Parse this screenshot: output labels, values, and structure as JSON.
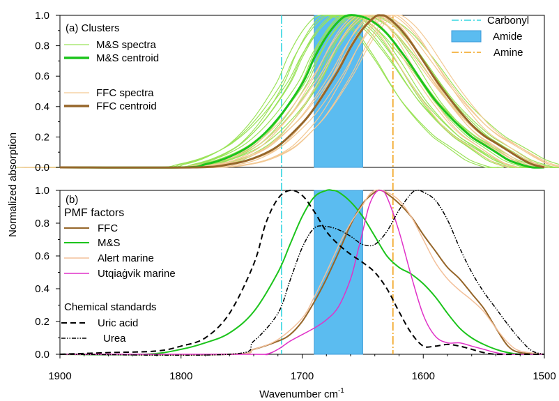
{
  "chart_data": {
    "type": "line",
    "xlabel": "Wavenumber cm",
    "xlabel_superscript": "-1",
    "ylabel": "Normalized absorption",
    "x_axis": {
      "range": [
        1900,
        1500
      ],
      "reversed": true,
      "ticks": [
        "1900",
        "1800",
        "1700",
        "1600",
        "1500"
      ]
    },
    "reference_markers": {
      "carbonyl": {
        "label": "Carbonyl",
        "x": 1717,
        "color": "#33d6e0"
      },
      "amide": {
        "label": "Amide",
        "x_range": [
          1690,
          1650
        ],
        "color": "#5bbcf0"
      },
      "amine": {
        "label": "Amine",
        "x": 1625,
        "color": "#f2a31b"
      }
    },
    "panels": [
      {
        "label": "(a) Clusters",
        "y_ticks": [
          "0.0",
          "0.2",
          "0.4",
          "0.6",
          "0.8",
          "1.0"
        ],
        "ylim": [
          0,
          1
        ],
        "legend": [
          {
            "label": "M&S spectra",
            "color": "#9be35a",
            "style": "thin"
          },
          {
            "label": "M&S centroid",
            "color": "#1cc41c",
            "style": "thick"
          },
          {
            "label": "FFC spectra",
            "color": "#f3c995",
            "style": "thin"
          },
          {
            "label": "FFC centroid",
            "color": "#96662a",
            "style": "thick"
          }
        ],
        "series": [
          {
            "name": "M&S centroid",
            "color": "#1cc41c",
            "width": 3,
            "x": [
              1900,
              1800,
              1780,
              1760,
              1740,
              1720,
              1700,
              1690,
              1680,
              1670,
              1662,
              1650,
              1640,
              1630,
              1620,
              1610,
              1600,
              1590,
              1580,
              1570,
              1560,
              1550,
              1540,
              1530,
              1520,
              1510,
              1500
            ],
            "y": [
              0.0,
              0.0,
              0.02,
              0.07,
              0.16,
              0.32,
              0.55,
              0.72,
              0.86,
              0.96,
              1.0,
              0.99,
              0.95,
              0.88,
              0.78,
              0.67,
              0.55,
              0.44,
              0.35,
              0.27,
              0.2,
              0.15,
              0.1,
              0.05,
              0.02,
              0.0,
              0.0
            ]
          },
          {
            "name": "FFC centroid",
            "color": "#96662a",
            "width": 3,
            "x": [
              1900,
              1790,
              1760,
              1740,
              1720,
              1700,
              1690,
              1680,
              1670,
              1660,
              1650,
              1640,
              1635,
              1630,
              1620,
              1610,
              1600,
              1590,
              1580,
              1570,
              1560,
              1550,
              1540,
              1530,
              1520,
              1510,
              1500
            ],
            "y": [
              0.0,
              0.0,
              0.02,
              0.06,
              0.14,
              0.29,
              0.39,
              0.51,
              0.64,
              0.79,
              0.91,
              0.99,
              1.0,
              0.99,
              0.92,
              0.82,
              0.7,
              0.58,
              0.47,
              0.37,
              0.28,
              0.21,
              0.16,
              0.11,
              0.06,
              0.02,
              0.0
            ]
          }
        ]
      },
      {
        "label": "(b)",
        "y_ticks": [
          "0.0",
          "0.2",
          "0.4",
          "0.6",
          "0.8",
          "1.0"
        ],
        "ylim": [
          0,
          1
        ],
        "legend_title": "PMF factors",
        "legend": [
          {
            "label": "FFC",
            "color": "#96662a",
            "style": "solid"
          },
          {
            "label": "M&S",
            "color": "#1cc41c",
            "style": "solid"
          },
          {
            "label": "Alert marine",
            "color": "#f3c09a",
            "style": "solid"
          },
          {
            "label": "Utqiaġvik marine",
            "color": "#e032c8",
            "style": "solid"
          }
        ],
        "standards_title": "Chemical standards",
        "standards": [
          {
            "label": "Uric acid",
            "color": "#000000",
            "style": "dashed"
          },
          {
            "label": "Urea",
            "color": "#000000",
            "style": "dashdot"
          }
        ],
        "series": [
          {
            "name": "FFC",
            "color": "#96662a",
            "width": 2,
            "x": [
              1900,
              1760,
              1740,
              1720,
              1710,
              1700,
              1690,
              1680,
              1670,
              1660,
              1650,
              1640,
              1635,
              1630,
              1620,
              1610,
              1600,
              1590,
              1580,
              1570,
              1560,
              1550,
              1540,
              1530,
              1520,
              1500
            ],
            "y": [
              0.0,
              0.0,
              0.03,
              0.08,
              0.12,
              0.2,
              0.32,
              0.46,
              0.62,
              0.79,
              0.92,
              0.99,
              1.0,
              0.98,
              0.92,
              0.84,
              0.73,
              0.63,
              0.53,
              0.46,
              0.37,
              0.28,
              0.16,
              0.05,
              0.01,
              0.0
            ]
          },
          {
            "name": "M&S",
            "color": "#1cc41c",
            "width": 2,
            "x": [
              1900,
              1830,
              1800,
              1780,
              1760,
              1740,
              1720,
              1710,
              1700,
              1690,
              1680,
              1675,
              1670,
              1660,
              1650,
              1640,
              1630,
              1620,
              1610,
              1600,
              1590,
              1580,
              1570,
              1560,
              1550,
              1540,
              1530,
              1520,
              1500
            ],
            "y": [
              0.0,
              0.0,
              0.03,
              0.07,
              0.13,
              0.26,
              0.5,
              0.67,
              0.84,
              0.96,
              1.0,
              1.0,
              0.99,
              0.93,
              0.84,
              0.72,
              0.6,
              0.53,
              0.49,
              0.43,
              0.35,
              0.25,
              0.16,
              0.1,
              0.06,
              0.03,
              0.01,
              0.0,
              0.0
            ]
          },
          {
            "name": "Alert marine",
            "color": "#f3c09a",
            "width": 1.5,
            "x": [
              1900,
              1760,
              1740,
              1720,
              1700,
              1690,
              1680,
              1670,
              1660,
              1650,
              1645,
              1640,
              1635,
              1630,
              1620,
              1610,
              1600,
              1590,
              1580,
              1570,
              1560,
              1550,
              1540,
              1530,
              1520,
              1500
            ],
            "y": [
              0.0,
              0.0,
              0.03,
              0.09,
              0.22,
              0.35,
              0.5,
              0.66,
              0.8,
              0.91,
              0.97,
              1.0,
              1.0,
              0.99,
              0.94,
              0.84,
              0.7,
              0.56,
              0.46,
              0.39,
              0.33,
              0.26,
              0.16,
              0.07,
              0.02,
              0.0
            ]
          },
          {
            "name": "Utqiaġvik marine",
            "color": "#e032c8",
            "width": 1.5,
            "x": [
              1900,
              1745,
              1730,
              1720,
              1710,
              1700,
              1690,
              1680,
              1670,
              1660,
              1655,
              1650,
              1645,
              1640,
              1635,
              1630,
              1620,
              1610,
              1600,
              1590,
              1580,
              1570,
              1560,
              1550,
              1540,
              1530,
              1500
            ],
            "y": [
              0.0,
              0.0,
              0.0,
              0.03,
              0.08,
              0.12,
              0.16,
              0.21,
              0.29,
              0.46,
              0.6,
              0.75,
              0.9,
              0.98,
              1.0,
              0.96,
              0.75,
              0.48,
              0.24,
              0.11,
              0.07,
              0.07,
              0.05,
              0.03,
              0.01,
              0.0,
              0.0
            ]
          },
          {
            "name": "Uric acid",
            "color": "#000000",
            "width": 2,
            "dash": "8,5",
            "x": [
              1900,
              1860,
              1820,
              1800,
              1780,
              1760,
              1740,
              1730,
              1720,
              1710,
              1700,
              1690,
              1680,
              1670,
              1660,
              1650,
              1640,
              1630,
              1620,
              1610,
              1600,
              1590,
              1580,
              1570,
              1560,
              1550,
              1540,
              1520,
              1500
            ],
            "y": [
              0.0,
              0.01,
              0.02,
              0.05,
              0.1,
              0.25,
              0.55,
              0.8,
              0.95,
              1.0,
              0.97,
              0.87,
              0.75,
              0.67,
              0.61,
              0.56,
              0.5,
              0.4,
              0.26,
              0.13,
              0.05,
              0.05,
              0.06,
              0.05,
              0.03,
              0.01,
              0.0,
              0.0,
              0.0
            ]
          },
          {
            "name": "Urea",
            "color": "#000000",
            "width": 1.5,
            "dash": "6,2,1.5,2,1.5,2",
            "x": [
              1900,
              1760,
              1740,
              1720,
              1710,
              1700,
              1690,
              1680,
              1670,
              1660,
              1650,
              1640,
              1630,
              1620,
              1610,
              1605,
              1600,
              1590,
              1580,
              1570,
              1560,
              1550,
              1540,
              1530,
              1520,
              1510,
              1500
            ],
            "y": [
              0.0,
              0.0,
              0.08,
              0.25,
              0.45,
              0.65,
              0.77,
              0.78,
              0.76,
              0.72,
              0.67,
              0.67,
              0.75,
              0.88,
              0.98,
              1.0,
              0.99,
              0.94,
              0.82,
              0.65,
              0.5,
              0.38,
              0.28,
              0.18,
              0.09,
              0.02,
              0.0
            ]
          }
        ]
      }
    ]
  }
}
